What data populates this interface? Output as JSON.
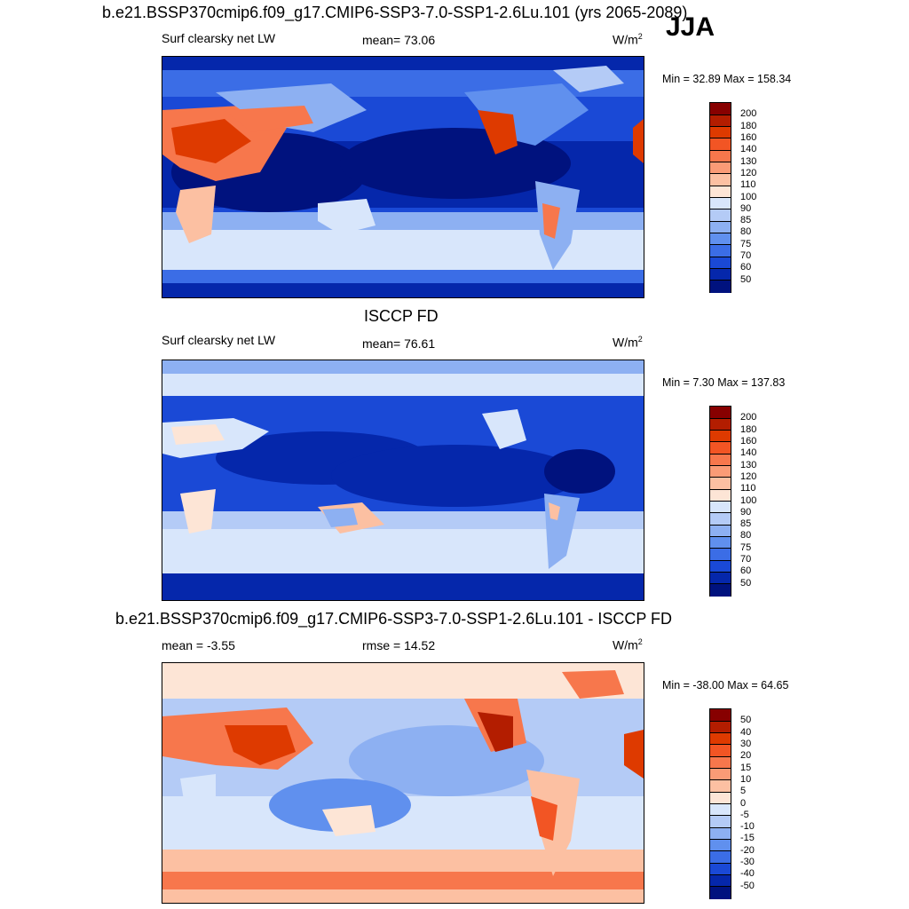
{
  "season": "JJA",
  "panels": [
    {
      "title": "b.e21.BSSP370cmip6.f09_g17.CMIP6-SSP3-7.0-SSP1-2.6Lu.101 (yrs 2065-2089)",
      "left_label": "Surf clearsky net LW",
      "center_label": "mean=  73.06",
      "units_base": "W/m",
      "units_exp": "2",
      "minmax": "Min =  32.89 Max = 158.34",
      "colorbar": {
        "labels": [
          "200",
          "180",
          "160",
          "140",
          "130",
          "120",
          "110",
          "100",
          "90",
          "85",
          "80",
          "75",
          "70",
          "60",
          "50"
        ],
        "colors": [
          "#870000",
          "#b31d00",
          "#de3a00",
          "#f25524",
          "#f7774c",
          "#fa9b76",
          "#fcc0a2",
          "#fde5d6",
          "#d8e6fb",
          "#b4cbf6",
          "#8db0f2",
          "#6090ee",
          "#3b6de6",
          "#1a49d6",
          "#0527ab",
          "#00127e"
        ]
      }
    },
    {
      "title": "ISCCP FD",
      "left_label": "Surf clearsky net LW",
      "center_label": "mean=  76.61",
      "units_base": "W/m",
      "units_exp": "2",
      "minmax": "Min =   7.30 Max = 137.83",
      "colorbar": {
        "labels": [
          "200",
          "180",
          "160",
          "140",
          "130",
          "120",
          "110",
          "100",
          "90",
          "85",
          "80",
          "75",
          "70",
          "60",
          "50"
        ],
        "colors": [
          "#870000",
          "#b31d00",
          "#de3a00",
          "#f25524",
          "#f7774c",
          "#fa9b76",
          "#fcc0a2",
          "#fde5d6",
          "#d8e6fb",
          "#b4cbf6",
          "#8db0f2",
          "#6090ee",
          "#3b6de6",
          "#1a49d6",
          "#0527ab",
          "#00127e"
        ]
      }
    },
    {
      "title": "b.e21.BSSP370cmip6.f09_g17.CMIP6-SSP3-7.0-SSP1-2.6Lu.101 - ISCCP FD",
      "left_label": "mean =  -3.55",
      "center_label": "rmse =  14.52",
      "units_base": "W/m",
      "units_exp": "2",
      "minmax": "Min = -38.00 Max =  64.65",
      "colorbar": {
        "labels": [
          "50",
          "40",
          "30",
          "20",
          "15",
          "10",
          "5",
          "0",
          "-5",
          "-10",
          "-15",
          "-20",
          "-30",
          "-40",
          "-50"
        ],
        "colors": [
          "#870000",
          "#b31d00",
          "#de3a00",
          "#f25524",
          "#f7774c",
          "#fa9b76",
          "#fcc0a2",
          "#fde5d6",
          "#d8e6fb",
          "#b4cbf6",
          "#8db0f2",
          "#6090ee",
          "#3b6de6",
          "#1a49d6",
          "#0527ab",
          "#00127e"
        ]
      }
    }
  ]
}
